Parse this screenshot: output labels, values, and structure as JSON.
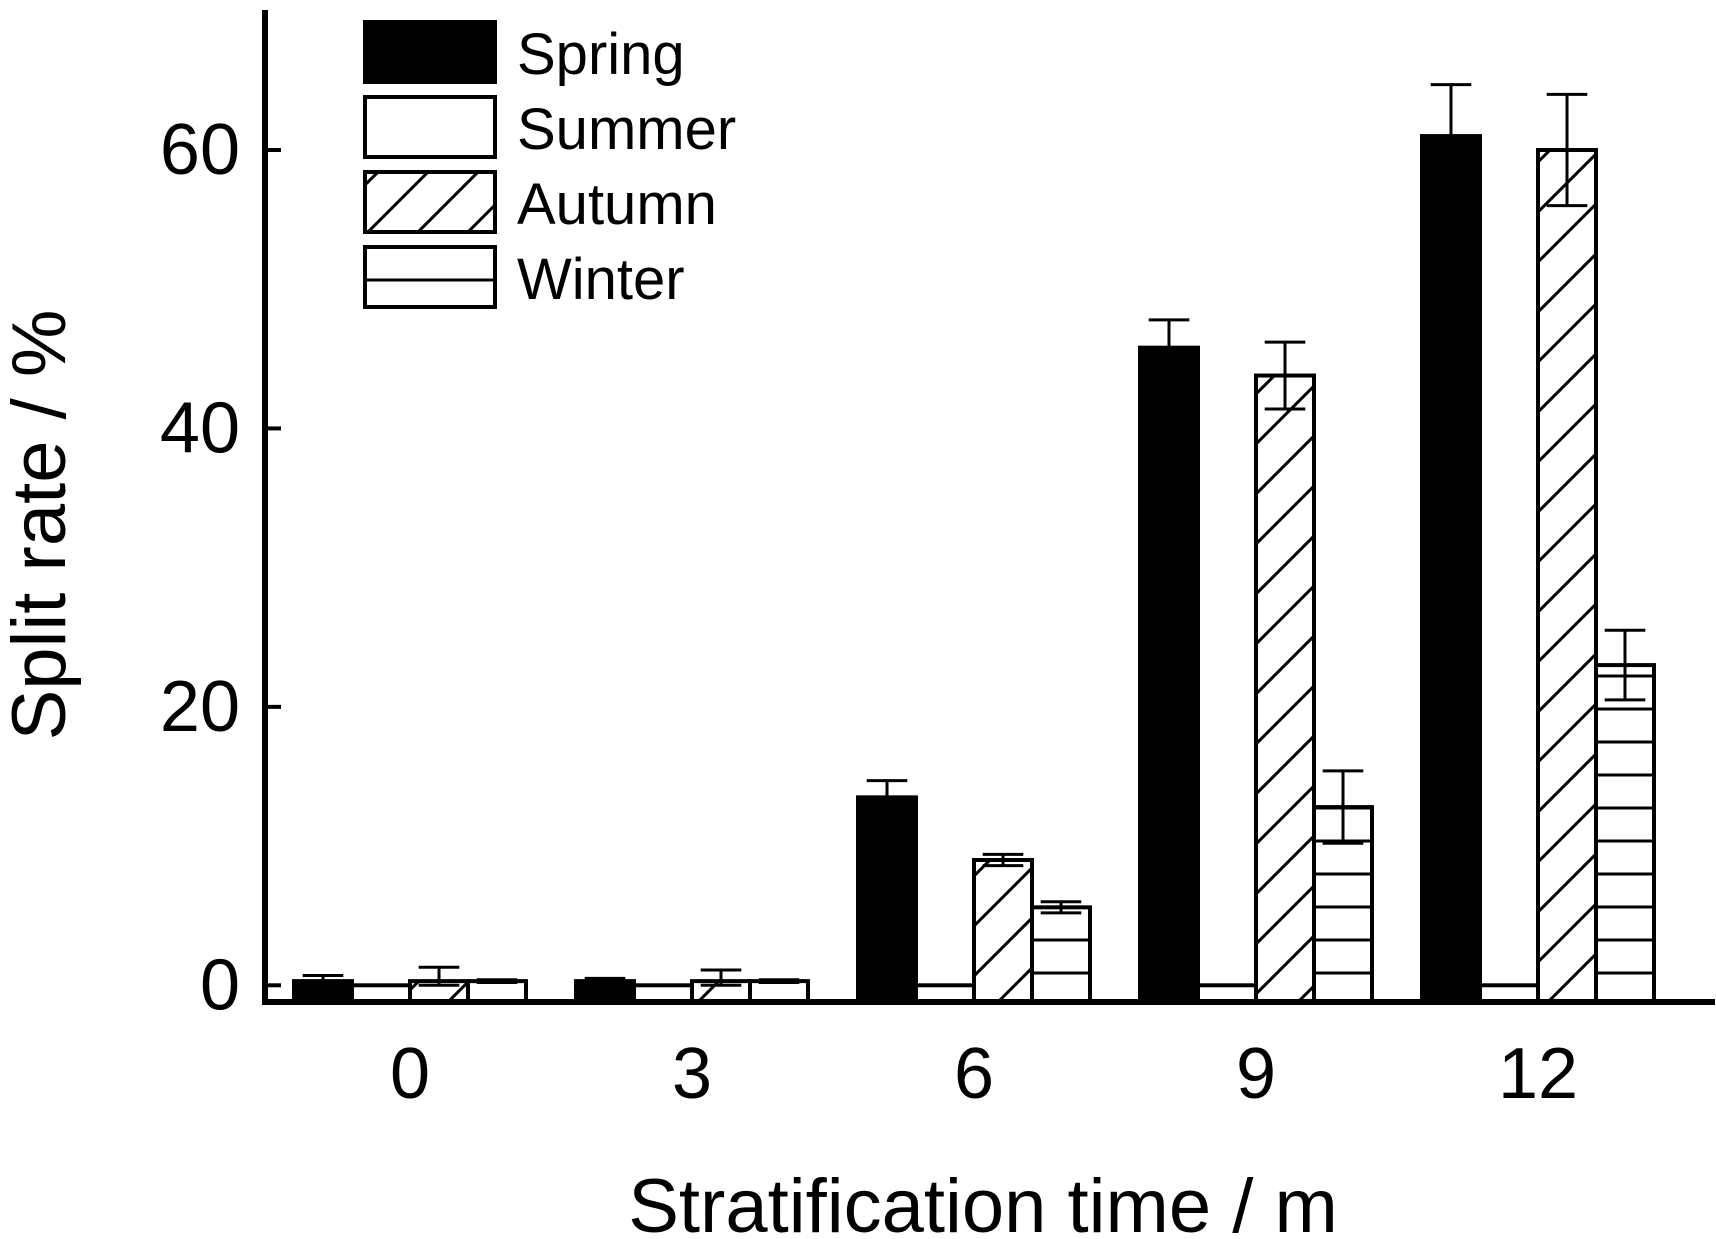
{
  "chart_data": {
    "type": "bar",
    "title": "",
    "xlabel": "Stratification time / m",
    "ylabel": "Split rate / %",
    "categories": [
      "0",
      "3",
      "6",
      "9",
      "12"
    ],
    "ylim": [
      -1.2,
      70
    ],
    "yticks": [
      0,
      20,
      40,
      60
    ],
    "grid": false,
    "legend_position": "top-left",
    "series": [
      {
        "name": "Spring",
        "fill": "solid",
        "values": [
          0.3,
          0.3,
          13.5,
          45.8,
          61.0
        ],
        "errors": [
          0.4,
          0.2,
          1.2,
          2.0,
          3.7
        ]
      },
      {
        "name": "Summer",
        "fill": "empty",
        "values": [
          0.0,
          0.0,
          0.0,
          0.0,
          0.0
        ],
        "errors": [
          0,
          0,
          0,
          0,
          0
        ]
      },
      {
        "name": "Autumn",
        "fill": "diagonal",
        "values": [
          0.3,
          0.3,
          9.0,
          43.8,
          60.0
        ],
        "errors": [
          1.0,
          0.8,
          0.4,
          2.4,
          4.0
        ]
      },
      {
        "name": "Winter",
        "fill": "horizontal",
        "values": [
          0.3,
          0.3,
          5.6,
          12.8,
          23.0
        ],
        "errors": [
          0.1,
          0.1,
          0.4,
          2.6,
          2.5
        ]
      }
    ]
  }
}
